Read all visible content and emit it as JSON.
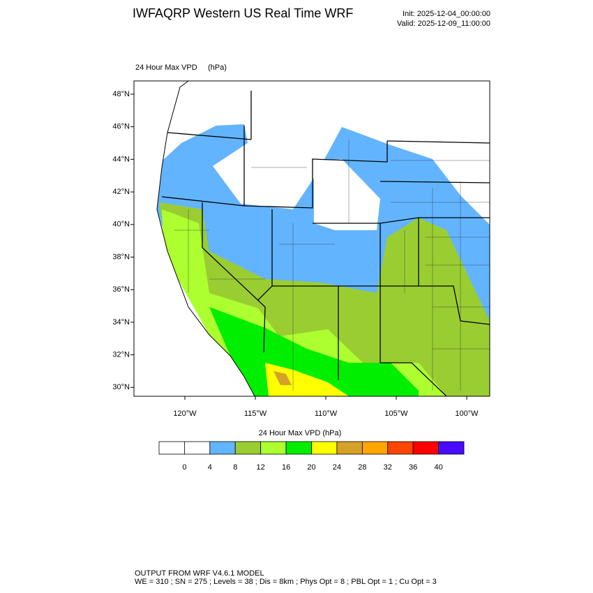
{
  "header": {
    "title": "IWFAQRP Western US Real Time WRF",
    "init": "Init: 2025-12-04_00:00:00",
    "valid": "Valid: 2025-12-09_11:00:00"
  },
  "map": {
    "field": "24 Hour Max VPD",
    "units": "(hPa)",
    "lat_labels": [
      "48°N",
      "46°N",
      "44°N",
      "42°N",
      "40°N",
      "38°N",
      "36°N",
      "34°N",
      "32°N",
      "30°N"
    ],
    "lon_labels": [
      "120°W",
      "115°W",
      "110°W",
      "105°W",
      "100°W"
    ]
  },
  "colorbar": {
    "title": "24 Hour Max VPD  (hPa)",
    "colors": [
      "#ffffff",
      "#ffffff",
      "#63b4ff",
      "#9acd32",
      "#adff2f",
      "#00ee00",
      "#ffff00",
      "#d4a12a",
      "#ffa500",
      "#ff4500",
      "#ff0000",
      "#4a0aff"
    ],
    "labels": [
      "0",
      "4",
      "8",
      "12",
      "16",
      "20",
      "24",
      "28",
      "32",
      "36",
      "40"
    ]
  },
  "footer": {
    "line1": "OUTPUT FROM WRF V4.6.1 MODEL",
    "line2": "WE = 310 ; SN = 275 ; Levels = 38 ; Dis = 8km ; Phys Opt = 8 ; PBL Opt = 1 ; Cu Opt = 3"
  }
}
